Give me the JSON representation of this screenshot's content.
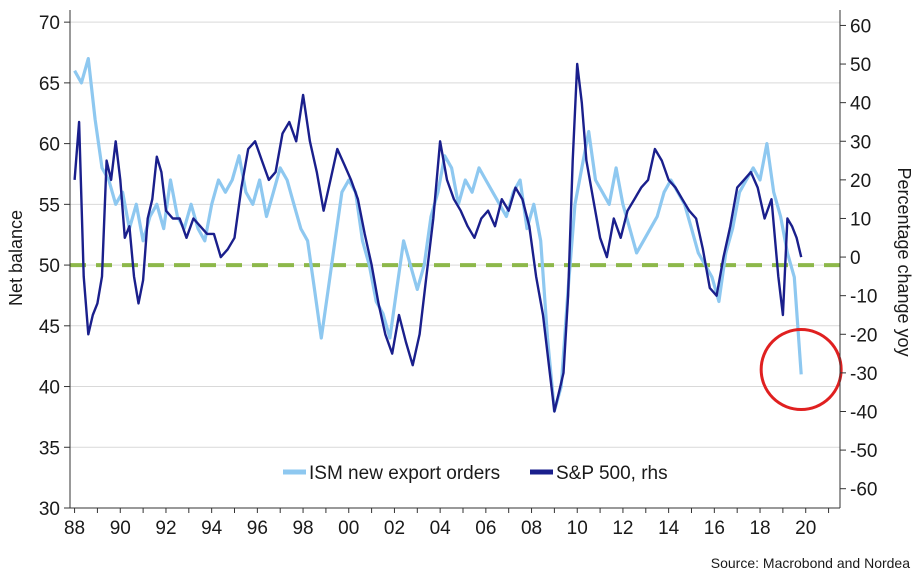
{
  "chart_data": {
    "type": "line",
    "ylabel_left": "Net balance",
    "ylabel_right": "Percentage change yoy",
    "ylim_left": [
      30,
      71
    ],
    "ylim_right": [
      -65,
      64
    ],
    "left_ticks": [
      30,
      35,
      40,
      45,
      50,
      55,
      60,
      65,
      70
    ],
    "right_ticks": [
      -60,
      -50,
      -40,
      -30,
      -20,
      -10,
      0,
      10,
      20,
      30,
      40,
      50,
      60
    ],
    "x_ticks": [
      "88",
      "90",
      "92",
      "94",
      "96",
      "98",
      "00",
      "02",
      "04",
      "06",
      "08",
      "10",
      "12",
      "14",
      "16",
      "18",
      "20"
    ],
    "x_tick_years": [
      1988,
      1990,
      1992,
      1994,
      1996,
      1998,
      2000,
      2002,
      2004,
      2006,
      2008,
      2010,
      2012,
      2014,
      2016,
      2018,
      2020
    ],
    "xlim": [
      1987.8,
      2021.5
    ],
    "reference_line": {
      "axis": "left",
      "value": 50,
      "color": "#8DB84A",
      "style": "dashed"
    },
    "highlight_circle": {
      "color": "#E02020",
      "center_date": 2019.8,
      "center_value_left": 41.4
    },
    "legend_position": "bottom-center",
    "series": [
      {
        "name": "ISM new export orders",
        "axis": "left",
        "color": "#8EC8F0",
        "x": [
          1988.0,
          1988.3,
          1988.6,
          1988.9,
          1989.2,
          1989.5,
          1989.8,
          1990.1,
          1990.4,
          1990.7,
          1991.0,
          1991.3,
          1991.6,
          1991.9,
          1992.2,
          1992.5,
          1992.8,
          1993.1,
          1993.4,
          1993.7,
          1994.0,
          1994.3,
          1994.6,
          1994.9,
          1995.2,
          1995.5,
          1995.8,
          1996.1,
          1996.4,
          1996.7,
          1997.0,
          1997.3,
          1997.6,
          1997.9,
          1998.2,
          1998.5,
          1998.8,
          1999.1,
          1999.4,
          1999.7,
          2000.0,
          2000.3,
          2000.6,
          2000.9,
          2001.2,
          2001.5,
          2001.8,
          2002.1,
          2002.4,
          2002.7,
          2003.0,
          2003.3,
          2003.6,
          2003.9,
          2004.2,
          2004.5,
          2004.8,
          2005.1,
          2005.4,
          2005.7,
          2006.0,
          2006.3,
          2006.6,
          2006.9,
          2007.2,
          2007.5,
          2007.8,
          2008.1,
          2008.4,
          2008.7,
          2009.0,
          2009.3,
          2009.6,
          2009.9,
          2010.2,
          2010.5,
          2010.8,
          2011.1,
          2011.4,
          2011.7,
          2012.0,
          2012.3,
          2012.6,
          2012.9,
          2013.2,
          2013.5,
          2013.8,
          2014.1,
          2014.4,
          2014.7,
          2015.0,
          2015.3,
          2015.6,
          2015.9,
          2016.2,
          2016.5,
          2016.8,
          2017.1,
          2017.4,
          2017.7,
          2018.0,
          2018.3,
          2018.6,
          2018.9,
          2019.2,
          2019.5,
          2019.8
        ],
        "values": [
          66,
          65,
          67,
          62,
          58,
          57,
          55,
          56,
          53,
          55,
          52,
          54,
          55,
          53,
          57,
          54,
          53,
          55,
          53,
          52,
          55,
          57,
          56,
          57,
          59,
          56,
          55,
          57,
          54,
          56,
          58,
          57,
          55,
          53,
          52,
          48,
          44,
          48,
          52,
          56,
          57,
          56,
          52,
          50,
          47,
          46,
          44,
          48,
          52,
          50,
          48,
          50,
          54,
          56,
          59,
          58,
          55,
          57,
          56,
          58,
          57,
          56,
          55,
          54,
          56,
          57,
          53,
          55,
          52,
          44,
          38,
          40,
          48,
          55,
          58,
          61,
          57,
          56,
          55,
          58,
          55,
          53,
          51,
          52,
          53,
          54,
          56,
          57,
          56,
          55,
          53,
          51,
          50,
          49,
          47,
          51,
          53,
          56,
          57,
          58,
          57,
          60,
          56,
          54,
          51,
          49,
          41
        ]
      },
      {
        "name": "S&P 500, rhs",
        "axis": "right",
        "color": "#1A1F8C",
        "x": [
          1988.0,
          1988.2,
          1988.4,
          1988.6,
          1988.8,
          1989.0,
          1989.2,
          1989.4,
          1989.6,
          1989.8,
          1990.0,
          1990.2,
          1990.4,
          1990.6,
          1990.8,
          1991.0,
          1991.2,
          1991.4,
          1991.6,
          1991.8,
          1992.0,
          1992.3,
          1992.6,
          1992.9,
          1993.2,
          1993.5,
          1993.8,
          1994.1,
          1994.4,
          1994.7,
          1995.0,
          1995.3,
          1995.6,
          1995.9,
          1996.2,
          1996.5,
          1996.8,
          1997.1,
          1997.4,
          1997.7,
          1998.0,
          1998.3,
          1998.6,
          1998.9,
          1999.2,
          1999.5,
          1999.8,
          2000.1,
          2000.4,
          2000.7,
          2001.0,
          2001.3,
          2001.6,
          2001.9,
          2002.2,
          2002.5,
          2002.8,
          2003.1,
          2003.4,
          2003.7,
          2004.0,
          2004.3,
          2004.6,
          2004.9,
          2005.2,
          2005.5,
          2005.8,
          2006.1,
          2006.4,
          2006.7,
          2007.0,
          2007.3,
          2007.6,
          2007.9,
          2008.2,
          2008.5,
          2008.8,
          2009.0,
          2009.2,
          2009.4,
          2009.6,
          2009.8,
          2010.0,
          2010.2,
          2010.4,
          2010.7,
          2011.0,
          2011.3,
          2011.6,
          2011.9,
          2012.2,
          2012.5,
          2012.8,
          2013.1,
          2013.4,
          2013.7,
          2014.0,
          2014.3,
          2014.6,
          2014.9,
          2015.2,
          2015.5,
          2015.8,
          2016.1,
          2016.4,
          2016.7,
          2017.0,
          2017.3,
          2017.6,
          2017.9,
          2018.2,
          2018.5,
          2018.8,
          2019.0,
          2019.2,
          2019.4,
          2019.6,
          2019.8
        ],
        "values": [
          20,
          35,
          -5,
          -20,
          -15,
          -12,
          -5,
          25,
          20,
          30,
          20,
          5,
          8,
          -5,
          -12,
          -6,
          10,
          15,
          26,
          22,
          12,
          10,
          10,
          5,
          10,
          8,
          6,
          6,
          0,
          2,
          5,
          18,
          28,
          30,
          25,
          20,
          22,
          32,
          35,
          30,
          42,
          30,
          22,
          12,
          20,
          28,
          24,
          20,
          15,
          6,
          -2,
          -12,
          -20,
          -25,
          -15,
          -22,
          -28,
          -20,
          -5,
          10,
          30,
          20,
          15,
          12,
          8,
          5,
          10,
          12,
          8,
          15,
          12,
          18,
          15,
          8,
          -5,
          -15,
          -30,
          -40,
          -35,
          -30,
          -10,
          25,
          50,
          40,
          25,
          15,
          5,
          0,
          10,
          5,
          12,
          15,
          18,
          20,
          28,
          25,
          20,
          18,
          15,
          12,
          10,
          2,
          -8,
          -10,
          0,
          8,
          18,
          20,
          22,
          18,
          10,
          15,
          -5,
          -15,
          10,
          8,
          5,
          0
        ]
      }
    ],
    "source": "Source: Macrobond and Nordea"
  }
}
